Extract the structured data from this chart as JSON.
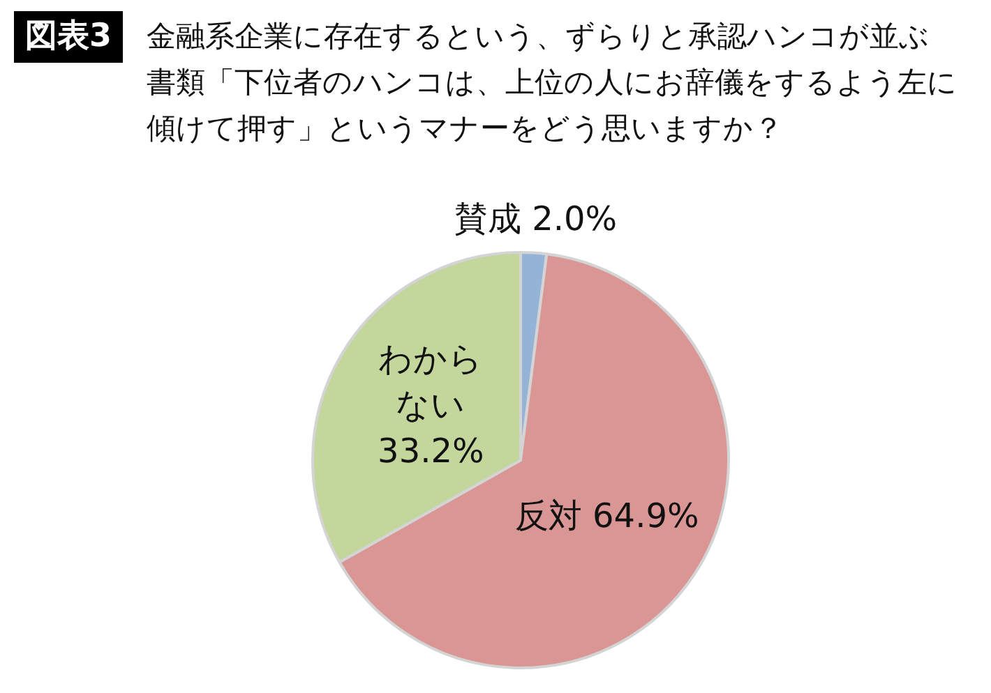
{
  "chart_data": {
    "type": "pie",
    "title": "金融系企業に存在するという、ずらりと承認ハンコが並ぶ書類「下位者のハンコは、上位の人にお辞儀をするよう左に傾けて押す」というマナーをどう思いますか？",
    "annotations": [
      "図表3"
    ],
    "categories": [
      "賛成",
      "反対",
      "わからない"
    ],
    "values": [
      2.0,
      64.9,
      33.2
    ],
    "colors": [
      "#95b3d7",
      "#d99694",
      "#c3d69b"
    ],
    "value_labels": [
      "2.0%",
      "64.9%",
      "33.2%"
    ]
  }
}
